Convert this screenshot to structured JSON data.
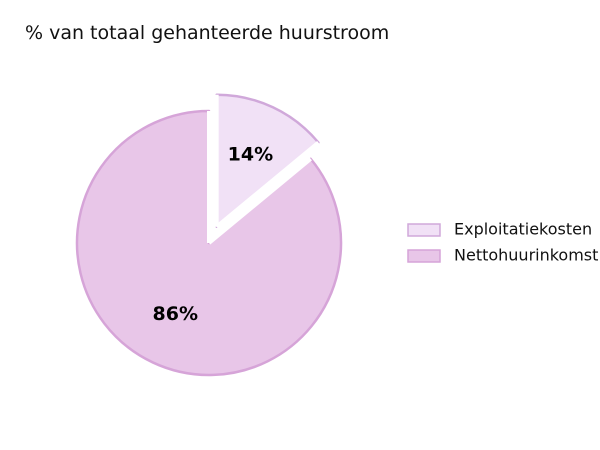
{
  "chart_data": {
    "type": "pie",
    "title": "% van totaal gehanteerde huurstroom",
    "slices": [
      {
        "label": "Exploitatiekosten",
        "value": 14,
        "display": "14%",
        "color": "#f1e1f6",
        "edge": "#d0a8da",
        "exploded": true
      },
      {
        "label": "Nettohuurinkomst",
        "value": 86,
        "display": "86%",
        "color": "#e8c6e8",
        "edge": "#d6a4d8",
        "exploded": false
      }
    ],
    "start": "12 o'clock",
    "direction": "clockwise",
    "legend_position": "right"
  }
}
